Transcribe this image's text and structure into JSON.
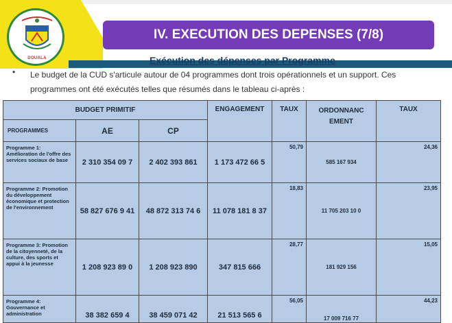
{
  "logo": {
    "name_text": "DOUALA"
  },
  "header": {
    "title": "IV. EXECUTION DES DEPENSES (7/8)",
    "subtitle": "Exécution des dépenses par Programme"
  },
  "intro": {
    "bullet": "•",
    "line1": "Le budget de la CUD s'articule autour de 04 programmes dont trois opérationnels et un support. Ces",
    "line2": "programmes ont été exécutés telles que résumés dans le tableau ci-après :"
  },
  "table": {
    "headers": {
      "budget_primitif": "BUDGET PRIMITIF",
      "engagement": "ENGAGEMENT",
      "taux": "TAUX",
      "ordonnancement": "ORDONNANC EMENT",
      "taux2": "TAUX",
      "programmes": "PROGRAMMES",
      "ae": "AE",
      "cp": "CP"
    },
    "rows": [
      {
        "programme": "Programme 1: Amélioration de l'offre des services sociaux de base",
        "ae": "2 310 354 09 7",
        "cp": "2 402 393 861",
        "engagement": "1 173 472 66 5",
        "taux": "50,79",
        "ordonnancement": "585 167 934",
        "taux2": "24,36"
      },
      {
        "programme": "Programme 2: Promotion du développement économique et protection de l'environnement",
        "ae": "58 827 676 9 41",
        "cp": "48 872 313 74 6",
        "engagement": "11 078 181 8 37",
        "taux": "18,83",
        "ordonnancement": "11 705 203 10 0",
        "taux2": "23,95"
      },
      {
        "programme": "Programme 3: Promotion de la citoyenneté, de la culture, des sports et appui à la jeunesse",
        "ae": "1 208 923 89 0",
        "cp": "1 208 923 890",
        "engagement": "347 815 666",
        "taux": "28,77",
        "ordonnancement": "181 929 156",
        "taux2": "15,05"
      },
      {
        "programme": "Programme 4: Gouvernance et administration",
        "ae": "38 382 659 4",
        "cp": "38 459 071 42",
        "engagement": "21 513 565 6",
        "taux": "56,05",
        "ordonnancement": "17 009 716 77",
        "taux2": "44,23"
      }
    ]
  }
}
